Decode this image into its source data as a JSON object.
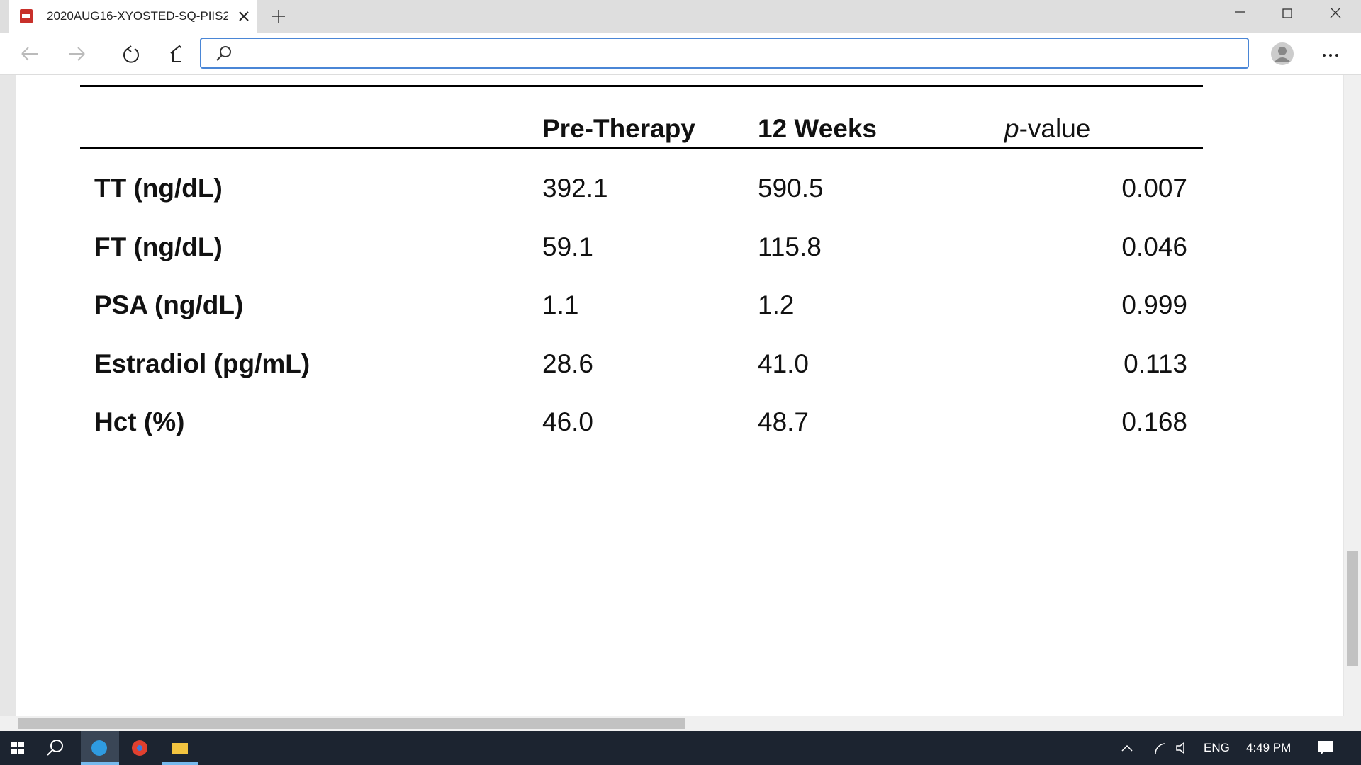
{
  "browser": {
    "tab_title": "2020AUG16-XYOSTED-SQ-PIIS2"
  },
  "table": {
    "header": {
      "pre": "Pre-Therapy",
      "weeks": "12 Weeks",
      "p_italic": "p",
      "p_rest": "-value"
    },
    "rows": [
      [
        "TT (ng/dL)",
        "392.1",
        "590.5",
        "0.007"
      ],
      [
        "FT (ng/dL)",
        "59.1",
        "115.8",
        "0.046"
      ],
      [
        "PSA (ng/dL)",
        "1.1",
        "1.2",
        "0.999"
      ],
      [
        "Estradiol (pg/mL)",
        "28.6",
        "41.0",
        "0.113"
      ],
      [
        "Hct (%)",
        "46.0",
        "48.7",
        "0.168"
      ]
    ]
  },
  "taskbar": {
    "language": "ENG",
    "time": "4:49 PM"
  }
}
